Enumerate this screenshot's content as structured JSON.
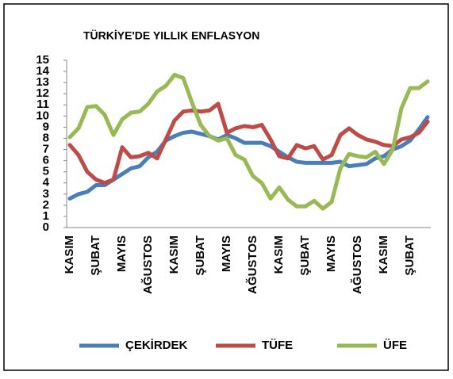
{
  "chart_data": {
    "type": "line",
    "title": "TÜRKİYE'DE YILLIK ENFLASYON",
    "categories": [
      "KASIM",
      null,
      null,
      "ŞUBAT",
      null,
      null,
      "MAYIS",
      null,
      null,
      "AĞUSTOS",
      null,
      null,
      "KASIM",
      null,
      null,
      "ŞUBAT",
      null,
      null,
      "MAYIS",
      null,
      null,
      "AĞUSTOS",
      null,
      null,
      "KASIM",
      null,
      null,
      "ŞUBAT",
      null,
      null,
      "MAYIS",
      null,
      null,
      "AĞUSTOS",
      null,
      null,
      "KASIM",
      null,
      null,
      "ŞUBAT",
      null,
      null
    ],
    "series": [
      {
        "name": "ÇEKİRDEK",
        "color": "#4a7ebb",
        "values": [
          2.6,
          3.0,
          3.2,
          3.8,
          3.8,
          4.3,
          4.8,
          5.3,
          5.5,
          6.3,
          6.8,
          7.8,
          8.2,
          8.5,
          8.6,
          8.4,
          8.2,
          7.9,
          8.3,
          8.0,
          7.6,
          7.6,
          7.6,
          7.3,
          6.8,
          6.3,
          5.9,
          5.8,
          5.8,
          5.8,
          5.8,
          5.9,
          5.5,
          5.6,
          5.7,
          6.2,
          6.4,
          7.0,
          7.3,
          7.8,
          8.8,
          9.9
        ]
      },
      {
        "name": "TÜFE",
        "color": "#be4b48",
        "values": [
          7.4,
          6.5,
          5.0,
          4.3,
          4.0,
          4.3,
          7.2,
          6.3,
          6.4,
          6.7,
          6.2,
          7.9,
          9.6,
          10.4,
          10.5,
          10.4,
          10.5,
          11.1,
          8.5,
          8.9,
          9.1,
          9.0,
          9.2,
          7.9,
          6.4,
          6.2,
          7.4,
          7.1,
          7.3,
          6.1,
          6.5,
          8.3,
          8.9,
          8.3,
          7.9,
          7.7,
          7.4,
          7.3,
          7.9,
          8.1,
          8.5,
          9.5
        ]
      },
      {
        "name": "ÜFE",
        "color": "#98b954",
        "values": [
          8.1,
          8.9,
          10.8,
          10.9,
          10.1,
          8.3,
          9.7,
          10.3,
          10.4,
          11.1,
          12.2,
          12.7,
          13.7,
          13.4,
          11.2,
          9.2,
          8.2,
          7.8,
          8.0,
          6.5,
          6.1,
          4.6,
          4.0,
          2.6,
          3.6,
          2.5,
          1.9,
          1.9,
          2.4,
          1.7,
          2.3,
          5.3,
          6.6,
          6.4,
          6.3,
          6.8,
          5.7,
          7.0,
          10.7,
          12.5,
          12.5,
          13.1
        ]
      }
    ],
    "ylim": [
      0,
      15
    ],
    "yticks": [
      0,
      1,
      2,
      3,
      4,
      5,
      6,
      7,
      8,
      9,
      10,
      11,
      12,
      13,
      14,
      15
    ],
    "grid": false,
    "legend": "bottom"
  }
}
